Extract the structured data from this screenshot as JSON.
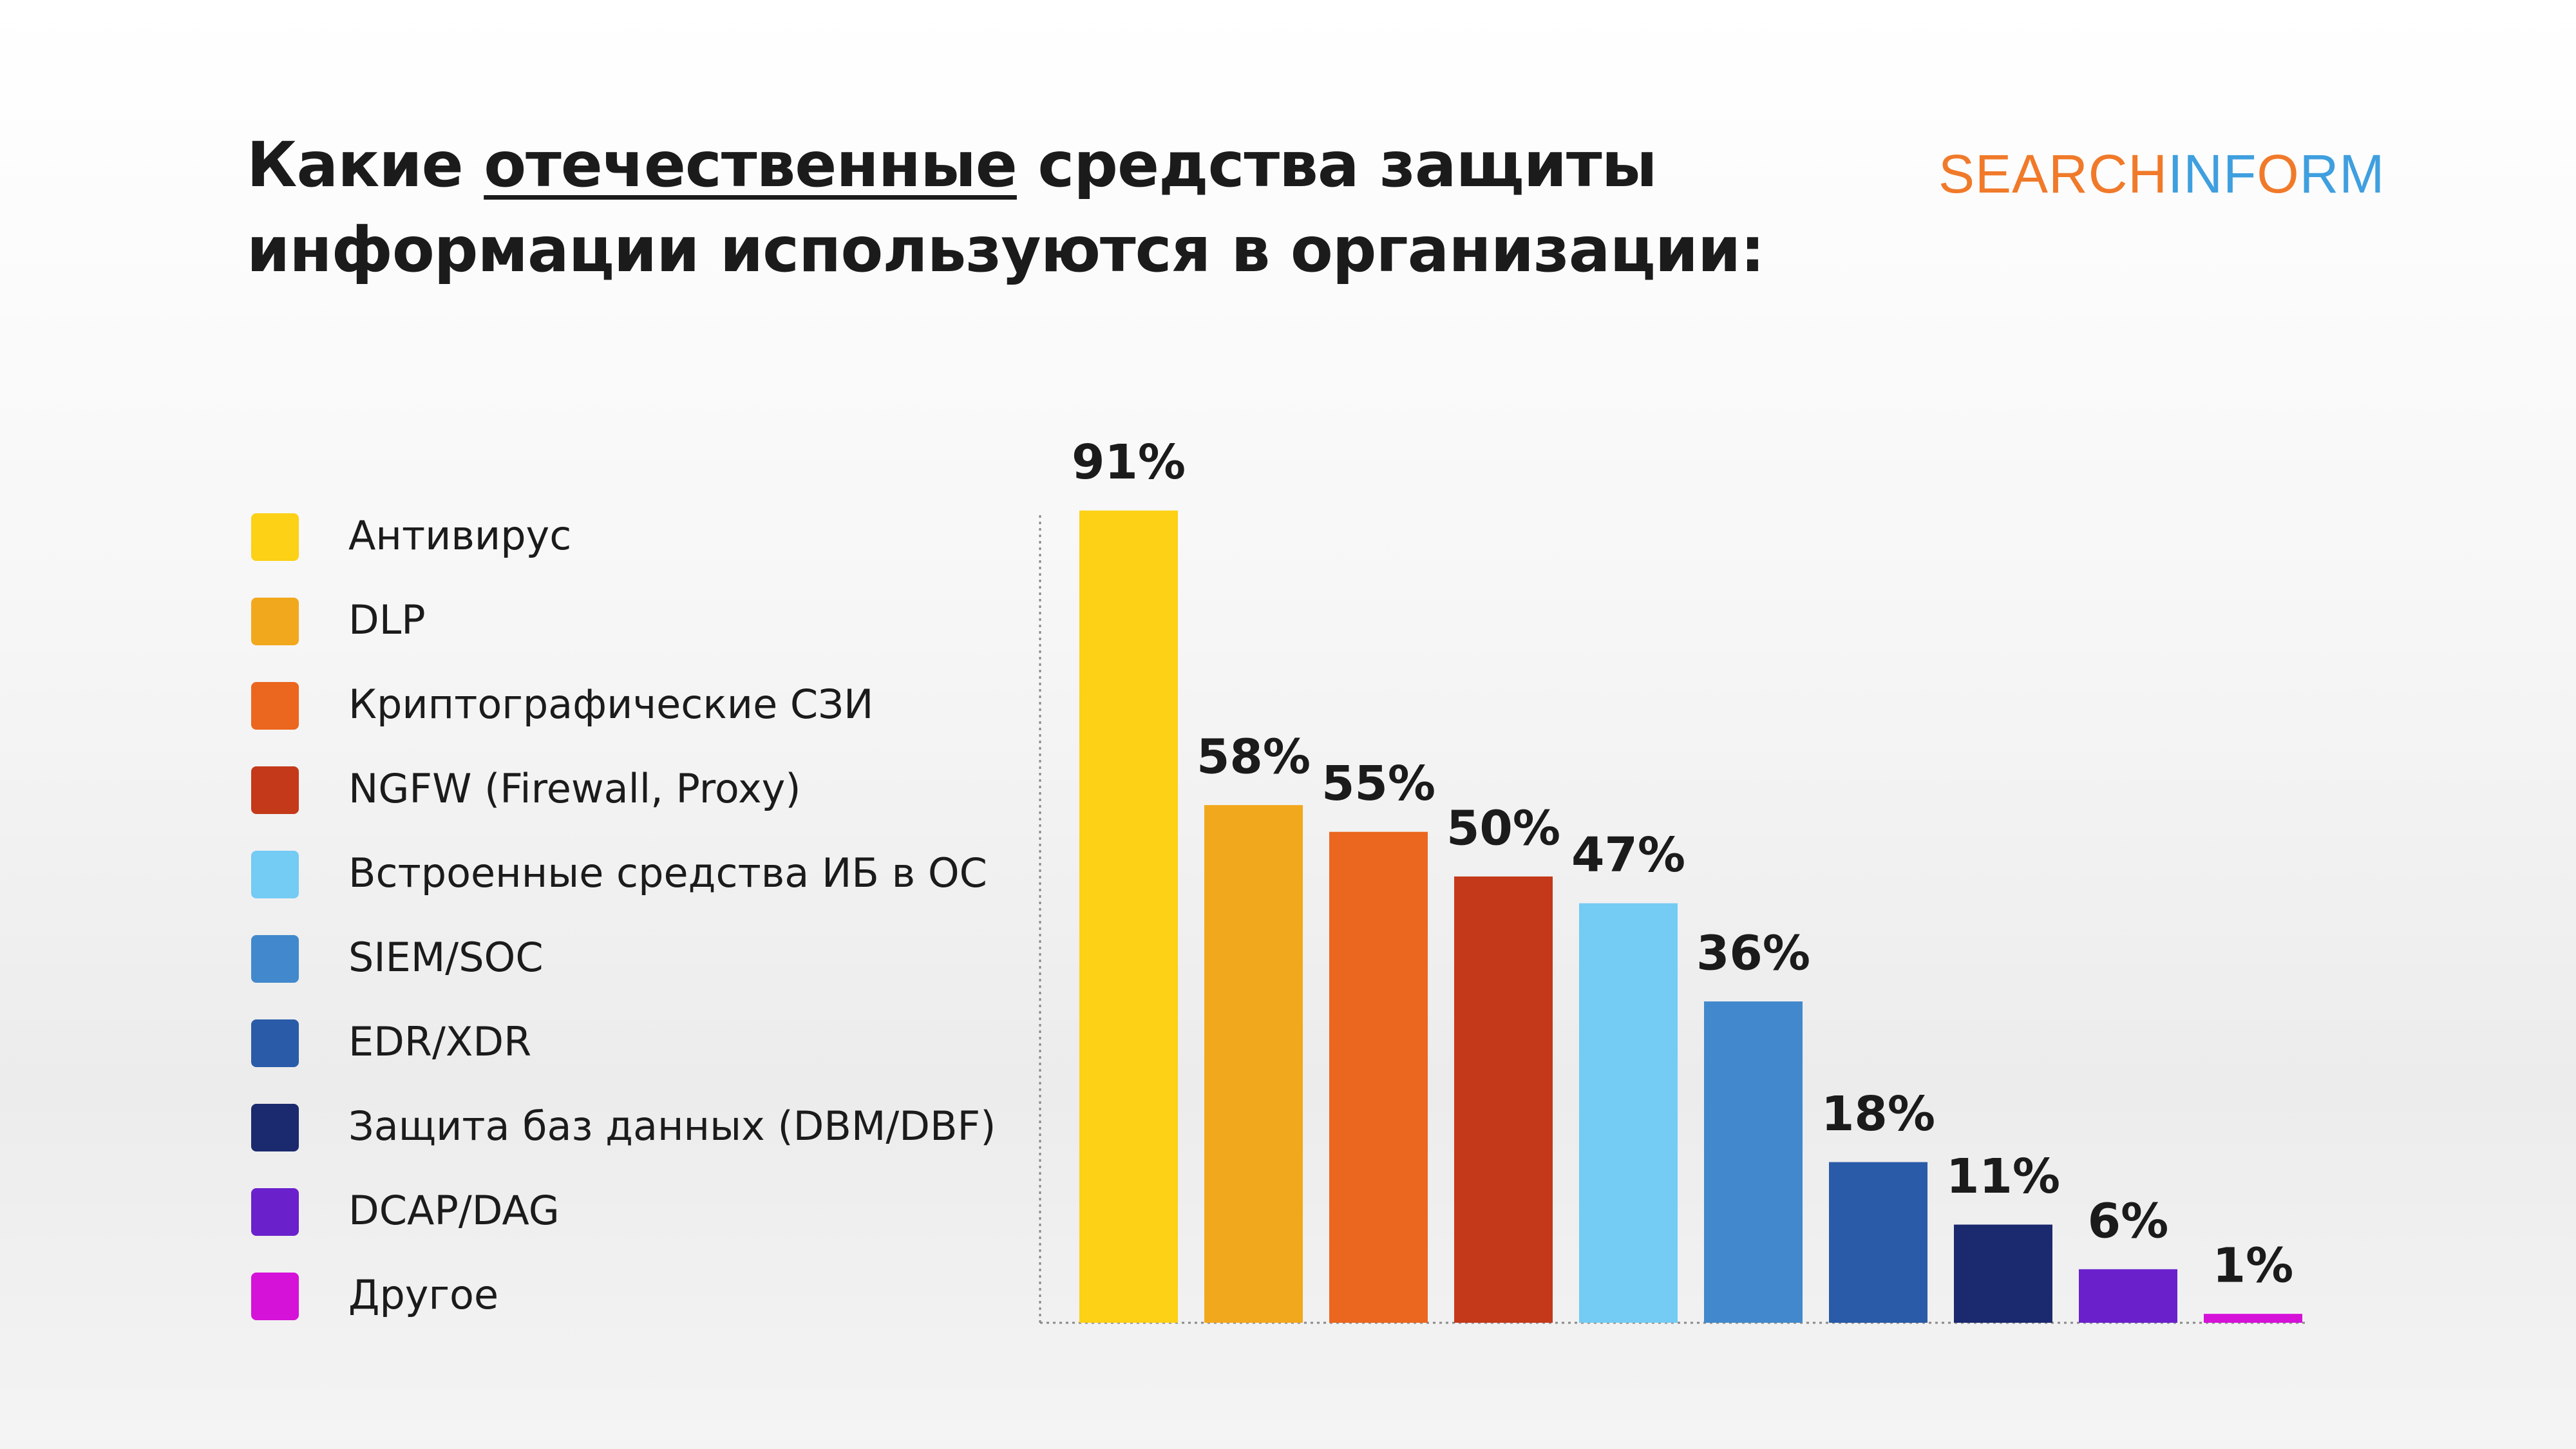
{
  "header": {
    "title": {
      "lead": "Какие",
      "underlined": "отечественные",
      "rest": "средства защиты информации используются в организации:"
    },
    "logo": {
      "part1": "SEARCH",
      "part2": "INF",
      "part3": "O",
      "part4": "RM"
    }
  },
  "chart_data": {
    "type": "bar",
    "categories": [
      "Антивирус",
      "DLP",
      "Криптографические СЗИ",
      "NGFW (Firewall, Proxy)",
      "Встроенные средства ИБ в ОС",
      "SIEM/SOC",
      "EDR/XDR",
      "Защита баз данных (DBM/DBF)",
      "DCAP/DAG",
      "Другое"
    ],
    "values": [
      91,
      58,
      55,
      50,
      47,
      36,
      18,
      11,
      6,
      1
    ],
    "value_labels": [
      "91%",
      "58%",
      "55%",
      "50%",
      "47%",
      "36%",
      "18%",
      "11%",
      "6%",
      "1%"
    ],
    "colors": [
      "#FCD116",
      "#F2A81D",
      "#EB661E",
      "#C4391A",
      "#74CBF4",
      "#4189CC",
      "#2A5BA8",
      "#1B2A6E",
      "#6A21CC",
      "#D512D8"
    ]
  }
}
